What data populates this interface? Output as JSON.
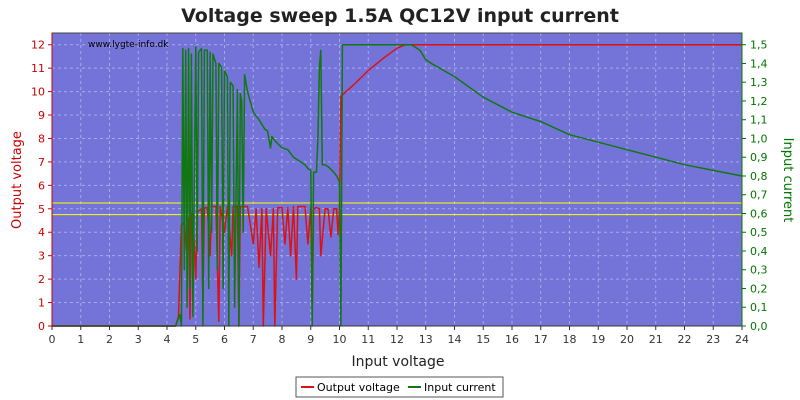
{
  "chart_data": {
    "type": "line",
    "title": "Voltage sweep 1.5A QC12V input current",
    "watermark": "www.lygte-info.dk",
    "xlabel": "Input voltage",
    "ylabel_left": "Output voltage",
    "ylabel_right": "Input current",
    "xlim": [
      0,
      24
    ],
    "ylim_left": [
      0,
      12.5
    ],
    "ylim_right": [
      0,
      1.5625
    ],
    "x_ticks": [
      0,
      1,
      2,
      3,
      4,
      5,
      6,
      7,
      8,
      9,
      10,
      11,
      12,
      13,
      14,
      15,
      16,
      17,
      18,
      19,
      20,
      21,
      22,
      23,
      24
    ],
    "y_left_ticks": [
      0,
      1,
      2,
      3,
      4,
      5,
      6,
      7,
      8,
      9,
      10,
      11,
      12
    ],
    "y_right_ticks": [
      "0,0",
      "0,1",
      "0,2",
      "0,3",
      "0,4",
      "0,5",
      "0,6",
      "0,7",
      "0,8",
      "0,9",
      "1,0",
      "1,1",
      "1,2",
      "1,3",
      "1,4",
      "1,5"
    ],
    "grid": true,
    "legend_position": "bottom",
    "reference_lines_left": [
      4.75,
      5.25
    ],
    "colors": {
      "plot_bg": "#7474d8",
      "output_voltage": "#dd1111",
      "input_current": "#117711",
      "reference": "#ffff00",
      "left_axis": "#cc0000",
      "right_axis": "#007700",
      "grid": "#a8a8ea"
    },
    "series": [
      {
        "name": "Output voltage",
        "axis": "left",
        "points": [
          [
            0,
            0
          ],
          [
            4.3,
            0
          ],
          [
            4.4,
            0.4
          ],
          [
            4.5,
            4.3
          ],
          [
            4.6,
            4.4
          ],
          [
            4.7,
            3.0
          ],
          [
            4.75,
            4.6
          ],
          [
            4.8,
            0.3
          ],
          [
            4.85,
            4.8
          ],
          [
            4.9,
            4.8
          ],
          [
            5.0,
            2.0
          ],
          [
            5.05,
            4.9
          ],
          [
            5.1,
            4.9
          ],
          [
            5.2,
            5.0
          ],
          [
            5.25,
            1.0
          ],
          [
            5.3,
            5.05
          ],
          [
            5.4,
            5.05
          ],
          [
            5.5,
            3.0
          ],
          [
            5.55,
            5.1
          ],
          [
            5.7,
            5.1
          ],
          [
            5.8,
            0.2
          ],
          [
            5.85,
            5.1
          ],
          [
            6.0,
            4.0
          ],
          [
            6.1,
            5.1
          ],
          [
            6.25,
            3.0
          ],
          [
            6.3,
            5.1
          ],
          [
            6.45,
            5.1
          ],
          [
            6.5,
            0.0
          ],
          [
            6.55,
            5.1
          ],
          [
            6.7,
            5.1
          ],
          [
            6.8,
            5.1
          ],
          [
            7.0,
            3.5
          ],
          [
            7.1,
            5.0
          ],
          [
            7.2,
            2.5
          ],
          [
            7.3,
            5.0
          ],
          [
            7.35,
            0.0
          ],
          [
            7.45,
            5.0
          ],
          [
            7.6,
            3.0
          ],
          [
            7.7,
            5.0
          ],
          [
            7.75,
            0.0
          ],
          [
            7.85,
            5.05
          ],
          [
            8.0,
            5.05
          ],
          [
            8.1,
            3.5
          ],
          [
            8.2,
            5.05
          ],
          [
            8.3,
            3.0
          ],
          [
            8.4,
            5.1
          ],
          [
            8.5,
            2.0
          ],
          [
            8.55,
            5.1
          ],
          [
            8.7,
            5.1
          ],
          [
            8.8,
            5.1
          ],
          [
            8.9,
            3.5
          ],
          [
            9.0,
            5.05
          ],
          [
            9.05,
            0.6
          ],
          [
            9.1,
            5.0
          ],
          [
            9.2,
            5.05
          ],
          [
            9.3,
            5.0
          ],
          [
            9.35,
            3.0
          ],
          [
            9.5,
            5.0
          ],
          [
            9.6,
            5.0
          ],
          [
            9.7,
            3.8
          ],
          [
            9.8,
            5.0
          ],
          [
            9.9,
            5.0
          ],
          [
            9.95,
            3.9
          ],
          [
            10.0,
            5.0
          ],
          [
            10.05,
            9.8
          ],
          [
            10.5,
            10.3
          ],
          [
            11.0,
            10.9
          ],
          [
            11.5,
            11.4
          ],
          [
            12.0,
            11.85
          ],
          [
            12.3,
            12.0
          ],
          [
            24.0,
            12.0
          ]
        ]
      },
      {
        "name": "Input current",
        "axis": "right",
        "points": [
          [
            0,
            0
          ],
          [
            4.3,
            0
          ],
          [
            4.45,
            0.06
          ],
          [
            4.5,
            0
          ],
          [
            4.55,
            1.48
          ],
          [
            4.6,
            0.3
          ],
          [
            4.65,
            1.47
          ],
          [
            4.7,
            0.1
          ],
          [
            4.75,
            1.48
          ],
          [
            4.8,
            0.2
          ],
          [
            4.85,
            1.45
          ],
          [
            4.9,
            0.05
          ],
          [
            5.0,
            1.49
          ],
          [
            5.05,
            0.4
          ],
          [
            5.1,
            1.46
          ],
          [
            5.2,
            1.48
          ],
          [
            5.25,
            0.0
          ],
          [
            5.3,
            1.47
          ],
          [
            5.4,
            1.47
          ],
          [
            5.45,
            0.2
          ],
          [
            5.5,
            1.46
          ],
          [
            5.55,
            0.5
          ],
          [
            5.6,
            1.45
          ],
          [
            5.7,
            1.4
          ],
          [
            5.75,
            0.3
          ],
          [
            5.8,
            1.4
          ],
          [
            5.9,
            1.38
          ],
          [
            5.95,
            0.2
          ],
          [
            6.0,
            1.36
          ],
          [
            6.1,
            1.33
          ],
          [
            6.15,
            0.0
          ],
          [
            6.2,
            1.3
          ],
          [
            6.3,
            1.28
          ],
          [
            6.35,
            0.1
          ],
          [
            6.45,
            1.26
          ],
          [
            6.5,
            0.0
          ],
          [
            6.55,
            1.24
          ],
          [
            6.6,
            1.2
          ],
          [
            6.65,
            0.5
          ],
          [
            6.7,
            1.34
          ],
          [
            6.8,
            1.25
          ],
          [
            7.0,
            1.14
          ],
          [
            7.2,
            1.1
          ],
          [
            7.4,
            1.05
          ],
          [
            7.5,
            1.04
          ],
          [
            7.6,
            0.95
          ],
          [
            7.65,
            1.01
          ],
          [
            7.8,
            0.98
          ],
          [
            8.0,
            0.95
          ],
          [
            8.2,
            0.94
          ],
          [
            8.4,
            0.9
          ],
          [
            8.5,
            0.89
          ],
          [
            8.6,
            0.88
          ],
          [
            8.7,
            0.87
          ],
          [
            8.8,
            0.86
          ],
          [
            8.9,
            0.84
          ],
          [
            9.0,
            0.83
          ],
          [
            9.05,
            0.0
          ],
          [
            9.1,
            0.82
          ],
          [
            9.2,
            0.82
          ],
          [
            9.25,
            1.0
          ],
          [
            9.3,
            1.38
          ],
          [
            9.35,
            1.47
          ],
          [
            9.4,
            0.86
          ],
          [
            9.5,
            0.86
          ],
          [
            9.6,
            0.85
          ],
          [
            9.8,
            0.82
          ],
          [
            9.9,
            0.8
          ],
          [
            10.0,
            0.77
          ],
          [
            10.05,
            0.0
          ],
          [
            10.1,
            1.5
          ],
          [
            10.5,
            1.5
          ],
          [
            11.5,
            1.5
          ],
          [
            12.5,
            1.5
          ],
          [
            12.8,
            1.47
          ],
          [
            13.0,
            1.42
          ],
          [
            13.2,
            1.4
          ],
          [
            14.0,
            1.33
          ],
          [
            15.0,
            1.22
          ],
          [
            16.0,
            1.14
          ],
          [
            17.0,
            1.09
          ],
          [
            18.0,
            1.02
          ],
          [
            19.0,
            0.98
          ],
          [
            20.0,
            0.94
          ],
          [
            21.0,
            0.9
          ],
          [
            22.0,
            0.86
          ],
          [
            23.0,
            0.83
          ],
          [
            24.0,
            0.8
          ]
        ]
      }
    ]
  }
}
